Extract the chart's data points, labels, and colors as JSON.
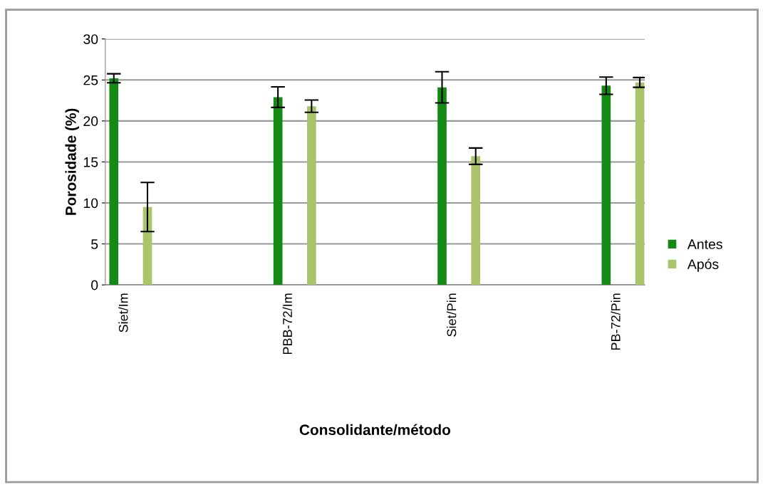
{
  "chart_data": {
    "type": "bar",
    "xlabel": "Consolidante/método",
    "ylabel": "Porosidade (%)",
    "categories": [
      "Siet/Im",
      "PBB-72/Im",
      "Siet/Pin",
      "PB-72/Pin"
    ],
    "series": [
      {
        "name": "Antes",
        "color": "#138a13",
        "values": [
          25.2,
          22.9,
          24.1,
          24.3
        ],
        "errors": [
          0.55,
          1.25,
          1.9,
          1.05
        ]
      },
      {
        "name": "Após",
        "color": "#a9c46a",
        "values": [
          9.5,
          21.8,
          15.7,
          24.7
        ],
        "errors": [
          3.0,
          0.75,
          1.0,
          0.6
        ]
      }
    ],
    "ylim": [
      0,
      30
    ],
    "yticks": [
      0,
      5,
      10,
      15,
      20,
      25,
      30
    ],
    "grid": "y",
    "legend": "right"
  }
}
